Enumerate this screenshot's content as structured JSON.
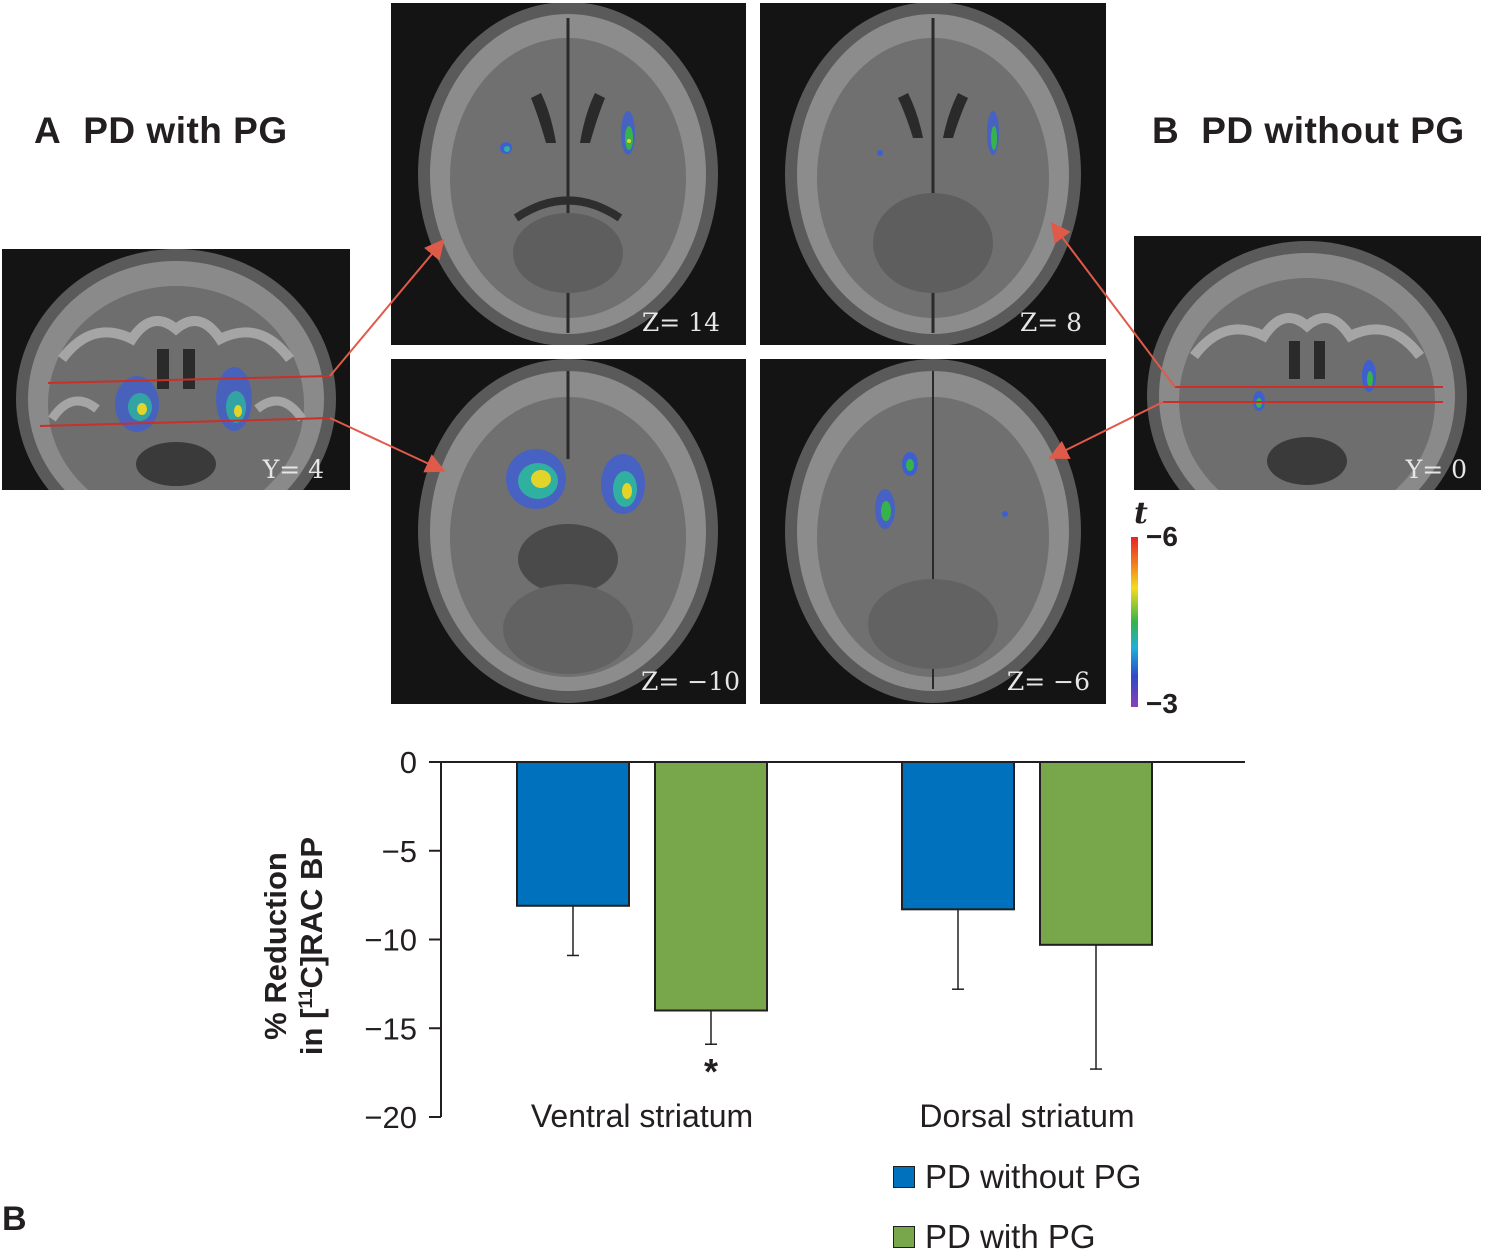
{
  "panel_a": {
    "letter": "A",
    "title": "PD with PG"
  },
  "panel_b": {
    "letter": "B",
    "title": "PD without PG"
  },
  "scans": {
    "coronal_a": "Y= 4",
    "axial_a_top": "Z= 14",
    "axial_a_bottom": "Z= −10",
    "axial_b_top": "Z= 8",
    "axial_b_bottom": "Z= −6",
    "coronal_b": "Y= 0"
  },
  "colorbar": {
    "title": "t",
    "max_label": "−6",
    "min_label": "−3"
  },
  "figure_letter": "B",
  "colors": {
    "pd_without_pg": "#0071bc",
    "pd_with_pg": "#77a64b",
    "arrow": "#e05a4a"
  },
  "chart_data": {
    "type": "bar",
    "categories": [
      "Ventral striatum",
      "Dorsal striatum"
    ],
    "series": [
      {
        "name": "PD without PG",
        "values": [
          -8.1,
          -8.3
        ],
        "error": [
          2.8,
          4.5
        ]
      },
      {
        "name": "PD with PG",
        "values": [
          -14.0,
          -10.3
        ],
        "error": [
          1.9,
          7.0
        ]
      }
    ],
    "ylabel_line1": "% Reduction",
    "ylabel_line2_prefix": "in [",
    "ylabel_sup": "11",
    "ylabel_line2_suffix": "C]RAC BP",
    "ylim": [
      -20,
      0
    ],
    "yticks": [
      0,
      -5,
      -10,
      -15,
      -20
    ],
    "ytick_labels": [
      "0",
      "−5",
      "−10",
      "−15",
      "−20"
    ],
    "significance": {
      "category": "Ventral striatum",
      "series": "PD with PG",
      "marker": "*"
    },
    "legend": "bottom-right",
    "grid": false
  }
}
